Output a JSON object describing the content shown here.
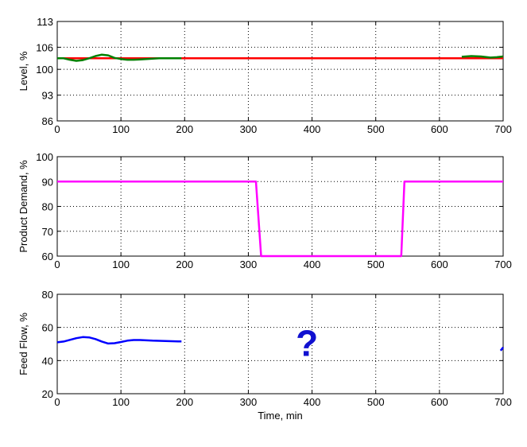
{
  "colors": {
    "level_setpoint": "#ff0000",
    "level_measured": "#008000",
    "demand": "#ff00ff",
    "feed": "#0000ff",
    "question": "#1010d0",
    "grid": "#000000"
  },
  "chart_data": [
    {
      "type": "line",
      "ylabel": "Level, %",
      "xlabel": "",
      "xlim": [
        0,
        700
      ],
      "ylim": [
        86,
        113
      ],
      "xticks": [
        0,
        100,
        200,
        300,
        400,
        500,
        600,
        700
      ],
      "yticks": [
        86,
        93,
        100,
        106,
        113
      ],
      "grid": true,
      "series": [
        {
          "color_key": "level_setpoint",
          "x": [
            0,
            700
          ],
          "y": [
            103,
            103
          ]
        },
        {
          "color_key": "level_measured",
          "x": [
            0,
            10,
            20,
            30,
            40,
            50,
            60,
            70,
            80,
            90,
            100,
            110,
            120,
            130,
            140,
            150,
            160,
            170,
            180,
            190,
            195
          ],
          "y": [
            103,
            103,
            102.6,
            102.3,
            102.5,
            103,
            103.6,
            104,
            103.8,
            103.1,
            102.8,
            102.6,
            102.6,
            102.7,
            102.8,
            102.9,
            103,
            103,
            103,
            103,
            103
          ]
        },
        {
          "color_key": "level_measured",
          "x": [
            635,
            650,
            665,
            680,
            690,
            700
          ],
          "y": [
            103.4,
            103.6,
            103.5,
            103.2,
            103.3,
            103.5
          ]
        }
      ]
    },
    {
      "type": "line",
      "ylabel": "Product Demand, %",
      "xlabel": "",
      "xlim": [
        0,
        700
      ],
      "ylim": [
        60,
        100
      ],
      "xticks": [
        0,
        100,
        200,
        300,
        400,
        500,
        600,
        700
      ],
      "yticks": [
        60,
        70,
        80,
        90,
        100
      ],
      "grid": true,
      "series": [
        {
          "color_key": "demand",
          "x": [
            0,
            312,
            320,
            540,
            545,
            700
          ],
          "y": [
            90,
            90,
            60,
            60,
            90,
            90
          ]
        }
      ]
    },
    {
      "type": "line",
      "ylabel": "Feed Flow, %",
      "xlabel": "Time, min",
      "xlim": [
        0,
        700
      ],
      "ylim": [
        20,
        80
      ],
      "xticks": [
        0,
        100,
        200,
        300,
        400,
        500,
        600,
        700
      ],
      "yticks": [
        20,
        40,
        60,
        80
      ],
      "grid": true,
      "annotation": "?",
      "series": [
        {
          "color_key": "feed",
          "x": [
            0,
            10,
            20,
            30,
            40,
            50,
            60,
            70,
            80,
            90,
            100,
            110,
            120,
            130,
            140,
            150,
            160,
            170,
            180,
            190,
            195
          ],
          "y": [
            51,
            51.5,
            52.5,
            53.5,
            54.2,
            54,
            53,
            51.5,
            50.3,
            50.5,
            51.2,
            52,
            52.4,
            52.4,
            52.2,
            52,
            51.9,
            51.8,
            51.7,
            51.6,
            51.6
          ]
        },
        {
          "color_key": "feed",
          "x": [
            696,
            698,
            700
          ],
          "y": [
            46,
            47,
            48
          ]
        }
      ]
    }
  ]
}
